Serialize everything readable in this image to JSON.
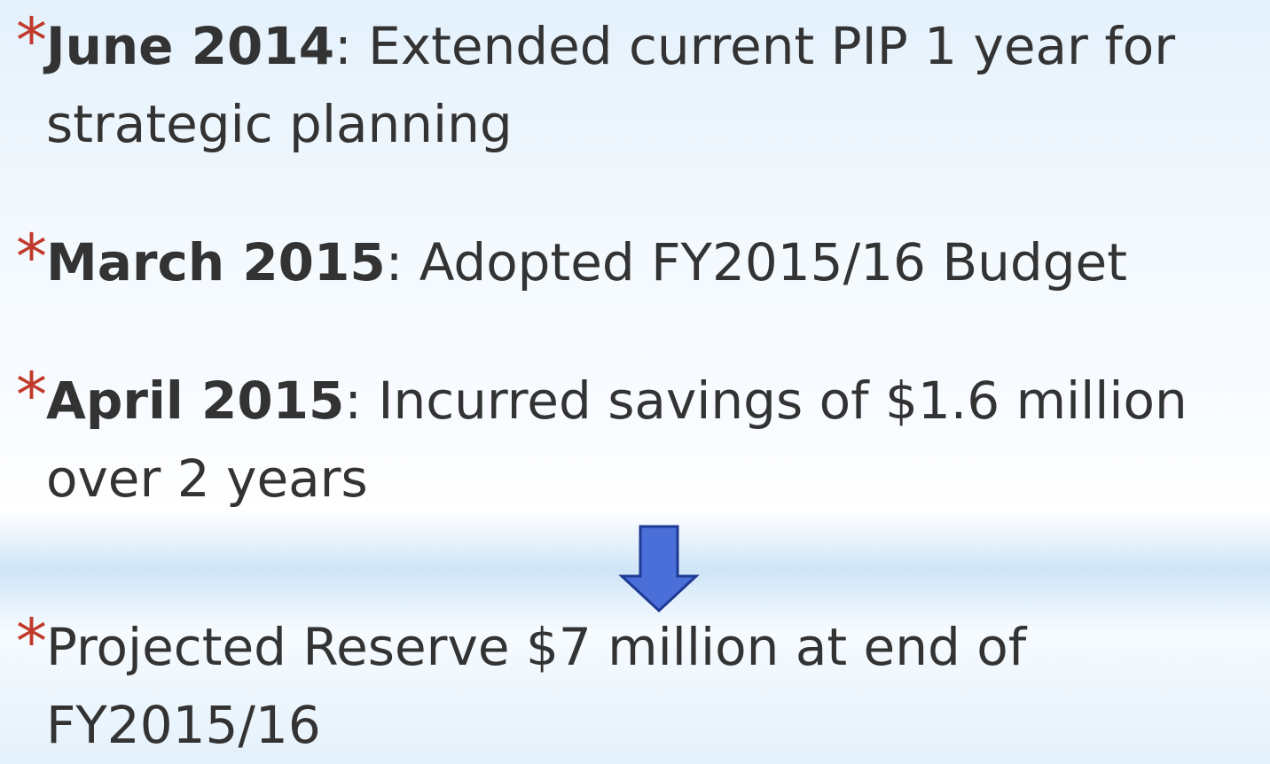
{
  "bullets": [
    {
      "marker": "*",
      "bold": "June 2014",
      "text": ": Extended current PIP 1 year for strategic planning"
    },
    {
      "marker": "*",
      "bold": "March 2015",
      "text": ": Adopted FY2015/16 Budget"
    },
    {
      "marker": "*",
      "bold": "April 2015",
      "text": ": Incurred savings of $1.6 million over 2 years"
    },
    {
      "marker": "*",
      "text": "Projected Reserve $7 million at end of FY2015/16"
    }
  ]
}
